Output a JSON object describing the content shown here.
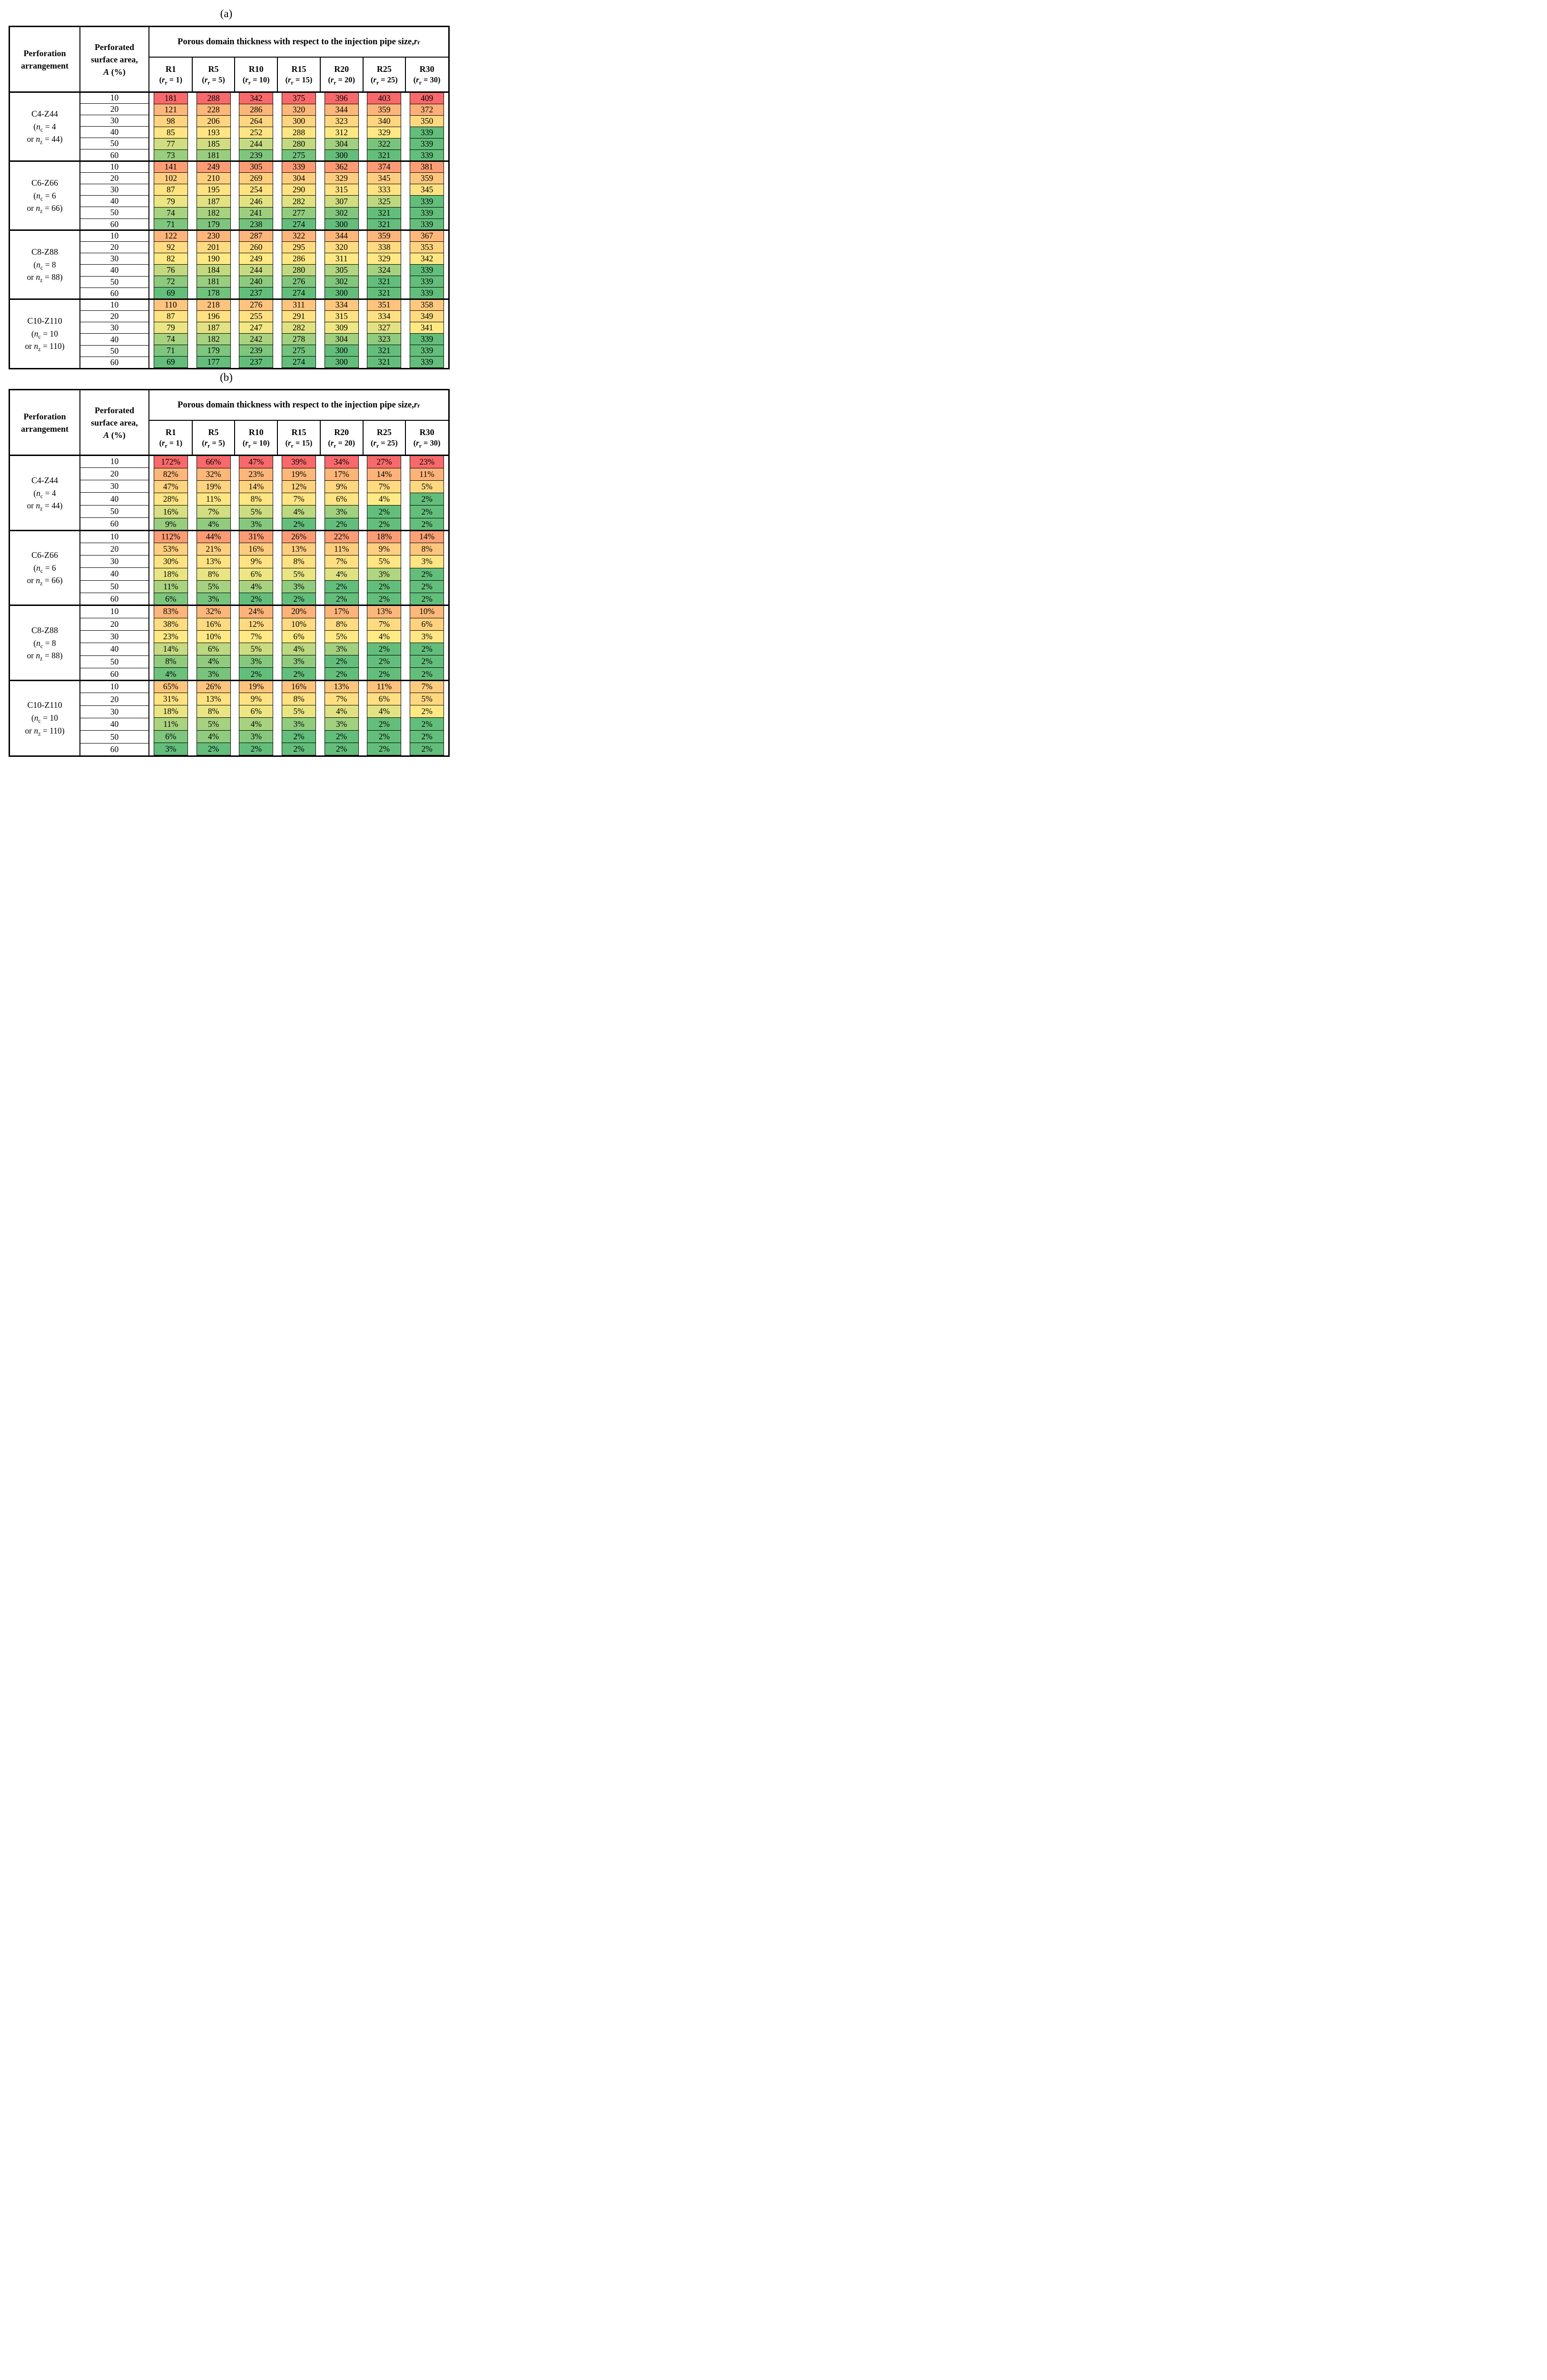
{
  "page": {
    "background": "#ffffff",
    "text_color": "#000000"
  },
  "heat_scale": {
    "low_color": "#63BE7B",
    "mid_color": "#FFEB84",
    "high_color": "#F8696B",
    "rule": "per-column 3-color scale, median midpoint, high values red"
  },
  "tables": [
    {
      "caption": "(a)",
      "corner_lines": [
        "Perforation",
        "arrangement"
      ],
      "area_header_lines": [
        "Perforated",
        "surface area,",
        "A (%)"
      ],
      "span_header": "Porous domain thickness with respect to the injection pipe size, r_r",
      "columns": [
        {
          "label": "R1",
          "sub": "(r_r = 1)"
        },
        {
          "label": "R5",
          "sub": "(r_r = 5)"
        },
        {
          "label": "R10",
          "sub": "(r_r = 10)"
        },
        {
          "label": "R15",
          "sub": "(r_r = 15)"
        },
        {
          "label": "R20",
          "sub": "(r_r = 20)"
        },
        {
          "label": "R25",
          "sub": "(r_r = 25)"
        },
        {
          "label": "R30",
          "sub": "(r_r = 30)"
        }
      ],
      "value_suffix": "",
      "groups": [
        {
          "name": "C4-Z44",
          "sub_lines": [
            "(n_c = 4",
            "or n_z = 44)"
          ],
          "rows": [
            {
              "area": "10",
              "values": [
                181,
                288,
                342,
                375,
                396,
                403,
                409
              ]
            },
            {
              "area": "20",
              "values": [
                121,
                228,
                286,
                320,
                344,
                359,
                372
              ]
            },
            {
              "area": "30",
              "values": [
                98,
                206,
                264,
                300,
                323,
                340,
                350
              ]
            },
            {
              "area": "40",
              "values": [
                85,
                193,
                252,
                288,
                312,
                329,
                339
              ]
            },
            {
              "area": "50",
              "values": [
                77,
                185,
                244,
                280,
                304,
                322,
                339
              ]
            },
            {
              "area": "60",
              "values": [
                73,
                181,
                239,
                275,
                300,
                321,
                339
              ]
            }
          ]
        },
        {
          "name": "C6-Z66",
          "sub_lines": [
            "(n_c = 6",
            "or n_z = 66)"
          ],
          "rows": [
            {
              "area": "10",
              "values": [
                141,
                249,
                305,
                339,
                362,
                374,
                381
              ]
            },
            {
              "area": "20",
              "values": [
                102,
                210,
                269,
                304,
                329,
                345,
                359
              ]
            },
            {
              "area": "30",
              "values": [
                87,
                195,
                254,
                290,
                315,
                333,
                345
              ]
            },
            {
              "area": "40",
              "values": [
                79,
                187,
                246,
                282,
                307,
                325,
                339
              ]
            },
            {
              "area": "50",
              "values": [
                74,
                182,
                241,
                277,
                302,
                321,
                339
              ]
            },
            {
              "area": "60",
              "values": [
                71,
                179,
                238,
                274,
                300,
                321,
                339
              ]
            }
          ]
        },
        {
          "name": "C8-Z88",
          "sub_lines": [
            "(n_c = 8",
            "or n_z = 88)"
          ],
          "rows": [
            {
              "area": "10",
              "values": [
                122,
                230,
                287,
                322,
                344,
                359,
                367
              ]
            },
            {
              "area": "20",
              "values": [
                92,
                201,
                260,
                295,
                320,
                338,
                353
              ]
            },
            {
              "area": "30",
              "values": [
                82,
                190,
                249,
                286,
                311,
                329,
                342
              ]
            },
            {
              "area": "40",
              "values": [
                76,
                184,
                244,
                280,
                305,
                324,
                339
              ]
            },
            {
              "area": "50",
              "values": [
                72,
                181,
                240,
                276,
                302,
                321,
                339
              ]
            },
            {
              "area": "60",
              "values": [
                69,
                178,
                237,
                274,
                300,
                321,
                339
              ]
            }
          ]
        },
        {
          "name": "C10-Z110",
          "sub_lines": [
            "(n_c = 10",
            "or n_z = 110)"
          ],
          "rows": [
            {
              "area": "10",
              "values": [
                110,
                218,
                276,
                311,
                334,
                351,
                358
              ]
            },
            {
              "area": "20",
              "values": [
                87,
                196,
                255,
                291,
                315,
                334,
                349
              ]
            },
            {
              "area": "30",
              "values": [
                79,
                187,
                247,
                282,
                309,
                327,
                341
              ]
            },
            {
              "area": "40",
              "values": [
                74,
                182,
                242,
                278,
                304,
                323,
                339
              ]
            },
            {
              "area": "50",
              "values": [
                71,
                179,
                239,
                275,
                300,
                321,
                339
              ]
            },
            {
              "area": "60",
              "values": [
                69,
                177,
                237,
                274,
                300,
                321,
                339
              ]
            }
          ]
        }
      ]
    },
    {
      "caption": "(b)",
      "corner_lines": [
        "Perforation",
        "arrangement"
      ],
      "area_header_lines": [
        "Perforated",
        "surface area,",
        "A (%)"
      ],
      "span_header": "Porous domain thickness with respect to the injection pipe size, r_r",
      "columns": [
        {
          "label": "R1",
          "sub": "(r_r = 1)"
        },
        {
          "label": "R5",
          "sub": "(r_r = 5)"
        },
        {
          "label": "R10",
          "sub": "(r_r = 10)"
        },
        {
          "label": "R15",
          "sub": "(r_r = 15)"
        },
        {
          "label": "R20",
          "sub": "(r_r = 20)"
        },
        {
          "label": "R25",
          "sub": "(r_r = 25)"
        },
        {
          "label": "R30",
          "sub": "(r_r = 30)"
        }
      ],
      "value_suffix": "%",
      "groups": [
        {
          "name": "C4-Z44",
          "sub_lines": [
            "(n_c = 4",
            "or n_z = 44)"
          ],
          "rows": [
            {
              "area": "10",
              "values": [
                172,
                66,
                47,
                39,
                34,
                27,
                23
              ]
            },
            {
              "area": "20",
              "values": [
                82,
                32,
                23,
                19,
                17,
                14,
                11
              ]
            },
            {
              "area": "30",
              "values": [
                47,
                19,
                14,
                12,
                9,
                7,
                5
              ]
            },
            {
              "area": "40",
              "values": [
                28,
                11,
                8,
                7,
                6,
                4,
                2
              ]
            },
            {
              "area": "50",
              "values": [
                16,
                7,
                5,
                4,
                3,
                2,
                2
              ]
            },
            {
              "area": "60",
              "values": [
                9,
                4,
                3,
                2,
                2,
                2,
                2
              ]
            }
          ]
        },
        {
          "name": "C6-Z66",
          "sub_lines": [
            "(n_c = 6",
            "or n_z = 66)"
          ],
          "rows": [
            {
              "area": "10",
              "values": [
                112,
                44,
                31,
                26,
                22,
                18,
                14
              ]
            },
            {
              "area": "20",
              "values": [
                53,
                21,
                16,
                13,
                11,
                9,
                8
              ]
            },
            {
              "area": "30",
              "values": [
                30,
                13,
                9,
                8,
                7,
                5,
                3
              ]
            },
            {
              "area": "40",
              "values": [
                18,
                8,
                6,
                5,
                4,
                3,
                2
              ]
            },
            {
              "area": "50",
              "values": [
                11,
                5,
                4,
                3,
                2,
                2,
                2
              ]
            },
            {
              "area": "60",
              "values": [
                6,
                3,
                2,
                2,
                2,
                2,
                2
              ]
            }
          ]
        },
        {
          "name": "C8-Z88",
          "sub_lines": [
            "(n_c = 8",
            "or n_z = 88)"
          ],
          "rows": [
            {
              "area": "10",
              "values": [
                83,
                32,
                24,
                20,
                17,
                13,
                10
              ]
            },
            {
              "area": "20",
              "values": [
                38,
                16,
                12,
                10,
                8,
                7,
                6
              ]
            },
            {
              "area": "30",
              "values": [
                23,
                10,
                7,
                6,
                5,
                4,
                3
              ]
            },
            {
              "area": "40",
              "values": [
                14,
                6,
                5,
                4,
                3,
                2,
                2
              ]
            },
            {
              "area": "50",
              "values": [
                8,
                4,
                3,
                3,
                2,
                2,
                2
              ]
            },
            {
              "area": "60",
              "values": [
                4,
                3,
                2,
                2,
                2,
                2,
                2
              ]
            }
          ]
        },
        {
          "name": "C10-Z110",
          "sub_lines": [
            "(n_c = 10",
            "or n_z = 110)"
          ],
          "rows": [
            {
              "area": "10",
              "values": [
                65,
                26,
                19,
                16,
                13,
                11,
                7
              ]
            },
            {
              "area": "20",
              "values": [
                31,
                13,
                9,
                8,
                7,
                6,
                5
              ]
            },
            {
              "area": "30",
              "values": [
                18,
                8,
                6,
                5,
                4,
                4,
                2
              ]
            },
            {
              "area": "40",
              "values": [
                11,
                5,
                4,
                3,
                3,
                2,
                2
              ]
            },
            {
              "area": "50",
              "values": [
                6,
                4,
                3,
                2,
                2,
                2,
                2
              ]
            },
            {
              "area": "60",
              "values": [
                3,
                2,
                2,
                2,
                2,
                2,
                2
              ]
            }
          ]
        }
      ]
    }
  ],
  "color_overrides": [
    {
      "table": 0,
      "group": 1,
      "row": 3,
      "col": 1,
      "color": "#E2E283"
    },
    {
      "table": 0,
      "group": 3,
      "row": 2,
      "col": 1,
      "color": "#E2E283"
    },
    {
      "table": 0,
      "group": 3,
      "row": 2,
      "col": 5,
      "color": "#E2E283"
    },
    {
      "table": 1,
      "group": 3,
      "row": 2,
      "col": 5,
      "color": "#E2E283"
    },
    {
      "table": 1,
      "group": 3,
      "row": 2,
      "col": 6,
      "color": "#FFE983"
    }
  ]
}
